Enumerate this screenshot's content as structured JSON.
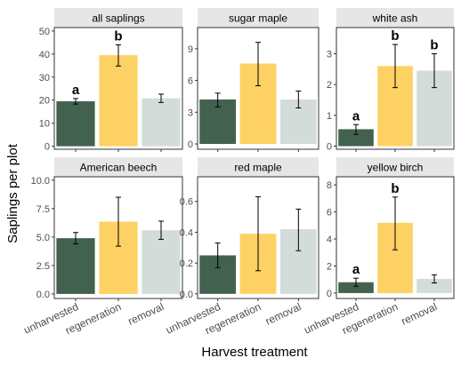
{
  "figure": {
    "ylabel": "Saplings per plot",
    "xlabel": "Harvest treatment"
  },
  "colors": {
    "unharvested": "#42624f",
    "regeneration": "#fdd163",
    "removal": "#d4dcda",
    "panel_border": "#333333",
    "strip_background": "#e6e6e6",
    "text": "#000000",
    "tick_text": "#4d4d4d"
  },
  "chart_data": [
    {
      "type": "bar",
      "title": "all saplings",
      "categories": [
        "unharvested",
        "regeneration",
        "removal"
      ],
      "values": [
        19.5,
        39.5,
        20.8
      ],
      "error_low": [
        18.3,
        34.8,
        19.0
      ],
      "error_high": [
        20.7,
        44.0,
        22.6
      ],
      "letters": [
        "a",
        "b",
        ""
      ],
      "ylim": [
        -1.3,
        51.5
      ],
      "yticks": [
        0,
        10,
        20,
        30,
        40,
        50
      ],
      "ytick_labels": [
        "0",
        "10",
        "20",
        "30",
        "40",
        "50"
      ]
    },
    {
      "type": "bar",
      "title": "sugar maple",
      "categories": [
        "unharvested",
        "regeneration",
        "removal"
      ],
      "values": [
        4.2,
        7.6,
        4.2
      ],
      "error_low": [
        3.5,
        5.5,
        3.4
      ],
      "error_high": [
        4.8,
        9.6,
        5.0
      ],
      "letters": [
        "",
        "",
        ""
      ],
      "ylim": [
        -0.5,
        11.0
      ],
      "yticks": [
        0,
        3,
        6,
        9
      ],
      "ytick_labels": [
        "0",
        "3",
        "6",
        "9"
      ]
    },
    {
      "type": "bar",
      "title": "white ash",
      "categories": [
        "unharvested",
        "regeneration",
        "removal"
      ],
      "values": [
        0.55,
        2.6,
        2.45
      ],
      "error_low": [
        0.38,
        1.9,
        1.9
      ],
      "error_high": [
        0.7,
        3.3,
        3.0
      ],
      "letters": [
        "a",
        "b",
        "b"
      ],
      "ylim": [
        -0.1,
        3.85
      ],
      "yticks": [
        0,
        1,
        2,
        3
      ],
      "ytick_labels": [
        "0",
        "1",
        "2",
        "3"
      ]
    },
    {
      "type": "bar",
      "title": "American beech",
      "categories": [
        "unharvested",
        "regeneration",
        "removal"
      ],
      "values": [
        4.9,
        6.35,
        5.6
      ],
      "error_low": [
        4.4,
        4.2,
        4.8
      ],
      "error_high": [
        5.4,
        8.5,
        6.4
      ],
      "letters": [
        "",
        "",
        ""
      ],
      "ylim": [
        -0.4,
        10.3
      ],
      "yticks": [
        0,
        2.5,
        5,
        7.5,
        10
      ],
      "ytick_labels": [
        "0.0",
        "2.5",
        "5.0",
        "7.5",
        "10.0"
      ]
    },
    {
      "type": "bar",
      "title": "red maple",
      "categories": [
        "unharvested",
        "regeneration",
        "removal"
      ],
      "values": [
        0.25,
        0.39,
        0.42
      ],
      "error_low": [
        0.17,
        0.15,
        0.28
      ],
      "error_high": [
        0.33,
        0.63,
        0.55
      ],
      "letters": [
        "",
        "",
        ""
      ],
      "ylim": [
        -0.03,
        0.76
      ],
      "yticks": [
        0,
        0.2,
        0.4,
        0.6
      ],
      "ytick_labels": [
        "0.0",
        "0.2",
        "0.4",
        "0.6"
      ]
    },
    {
      "type": "bar",
      "title": "yellow birch",
      "categories": [
        "unharvested",
        "regeneration",
        "removal"
      ],
      "values": [
        0.8,
        5.2,
        1.05
      ],
      "error_low": [
        0.5,
        3.2,
        0.75
      ],
      "error_high": [
        1.1,
        7.1,
        1.35
      ],
      "letters": [
        "a",
        "b",
        ""
      ],
      "ylim": [
        -0.4,
        8.6
      ],
      "yticks": [
        0,
        2,
        4,
        6,
        8
      ],
      "ytick_labels": [
        "0",
        "2",
        "4",
        "6",
        "8"
      ]
    }
  ]
}
